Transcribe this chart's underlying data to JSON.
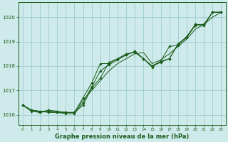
{
  "background_color": "#ceeaea",
  "grid_color": "#9ecece",
  "line_color": "#1a5c1a",
  "marker_color": "#1a5c1a",
  "title": "Graphe pression niveau de la mer (hPa)",
  "xlim": [
    -0.5,
    23.5
  ],
  "ylim": [
    1015.6,
    1020.6
  ],
  "yticks": [
    1016,
    1017,
    1018,
    1019,
    1020
  ],
  "xticks": [
    0,
    1,
    2,
    3,
    4,
    5,
    6,
    7,
    8,
    9,
    10,
    11,
    12,
    13,
    14,
    15,
    16,
    17,
    18,
    19,
    20,
    21,
    22,
    23
  ],
  "series_marked": [
    [
      1016.4,
      1016.2,
      1016.1,
      1016.2,
      1016.15,
      1016.1,
      1016.1,
      1016.7,
      1017.3,
      1018.1,
      1018.1,
      1018.3,
      1018.5,
      1018.55,
      1018.3,
      1017.95,
      1018.2,
      1018.8,
      1018.85,
      1019.2,
      1019.65,
      1019.65,
      1020.2,
      1020.2
    ],
    [
      1016.4,
      1016.15,
      1016.1,
      1016.15,
      1016.1,
      1016.05,
      1016.05,
      1016.5,
      1017.15,
      1017.8,
      1018.05,
      1018.25,
      1018.45,
      1018.6,
      1018.3,
      1018.0,
      1018.15,
      1018.3,
      1018.9,
      1019.15,
      1019.7,
      1019.7,
      1020.2,
      1020.2
    ],
    [
      1016.4,
      1016.2,
      1016.15,
      1016.1,
      1016.1,
      1016.1,
      1016.1,
      1016.4,
      1017.1,
      1017.5,
      1018.15,
      1018.3,
      1018.45,
      1018.6,
      1018.3,
      1018.0,
      1018.2,
      1018.3,
      1018.9,
      1019.2,
      1019.7,
      1019.7,
      1020.2,
      1020.2
    ]
  ],
  "series_plain": [
    [
      1016.4,
      1016.2,
      1016.15,
      1016.15,
      1016.12,
      1016.1,
      1016.1,
      1016.6,
      1017.0,
      1017.4,
      1017.8,
      1018.1,
      1018.3,
      1018.5,
      1018.55,
      1018.1,
      1018.25,
      1018.5,
      1018.8,
      1019.1,
      1019.5,
      1019.7,
      1020.0,
      1020.2
    ]
  ]
}
